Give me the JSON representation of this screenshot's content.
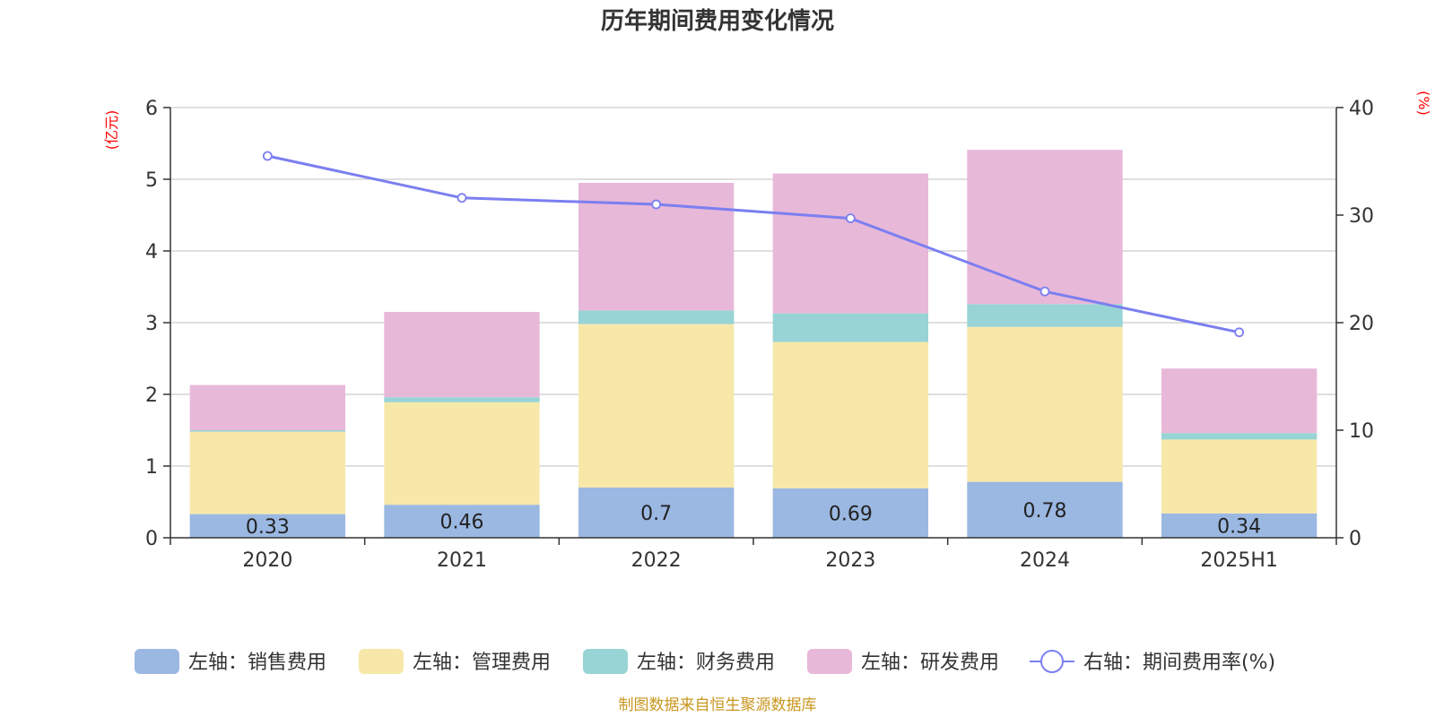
{
  "chart_data": {
    "type": "bar",
    "title": "历年期间费用变化情况",
    "categories": [
      "2020",
      "2021",
      "2022",
      "2023",
      "2024",
      "2025H1"
    ],
    "y_left": {
      "unit": "(亿元)",
      "min": 0,
      "max": 6,
      "ticks": [
        "0",
        "1",
        "2",
        "3",
        "4",
        "5",
        "6"
      ]
    },
    "y_right": {
      "unit": "(%)",
      "min": 0,
      "max": 40,
      "ticks": [
        "0",
        "10",
        "20",
        "30",
        "40"
      ]
    },
    "grid": true,
    "legend_position": "bottom",
    "series": [
      {
        "name": "左轴：销售费用",
        "kind": "bar",
        "color": "#9bb8e2",
        "values": [
          0.33,
          0.46,
          0.7,
          0.69,
          0.78,
          0.34
        ],
        "labels": [
          "0.33",
          "0.46",
          "0.7",
          "0.69",
          "0.78",
          "0.34"
        ]
      },
      {
        "name": "左轴：管理费用",
        "kind": "bar",
        "color": "#f7e8a9",
        "values": [
          1.15,
          1.43,
          2.28,
          2.04,
          2.16,
          1.03
        ]
      },
      {
        "name": "左轴：财务费用",
        "kind": "bar",
        "color": "#98d4d5",
        "values": [
          0.02,
          0.07,
          0.19,
          0.4,
          0.32,
          0.09
        ]
      },
      {
        "name": "左轴：研发费用",
        "kind": "bar",
        "color": "#e8b8d9",
        "values": [
          0.63,
          1.19,
          1.78,
          1.95,
          2.15,
          0.9
        ]
      },
      {
        "name": "右轴：期间费用率(%)",
        "kind": "line",
        "color": "#7b7ff0",
        "values": [
          35.5,
          31.6,
          31.0,
          29.7,
          22.9,
          19.1
        ]
      }
    ],
    "source": "制图数据来自恒生聚源数据库"
  }
}
